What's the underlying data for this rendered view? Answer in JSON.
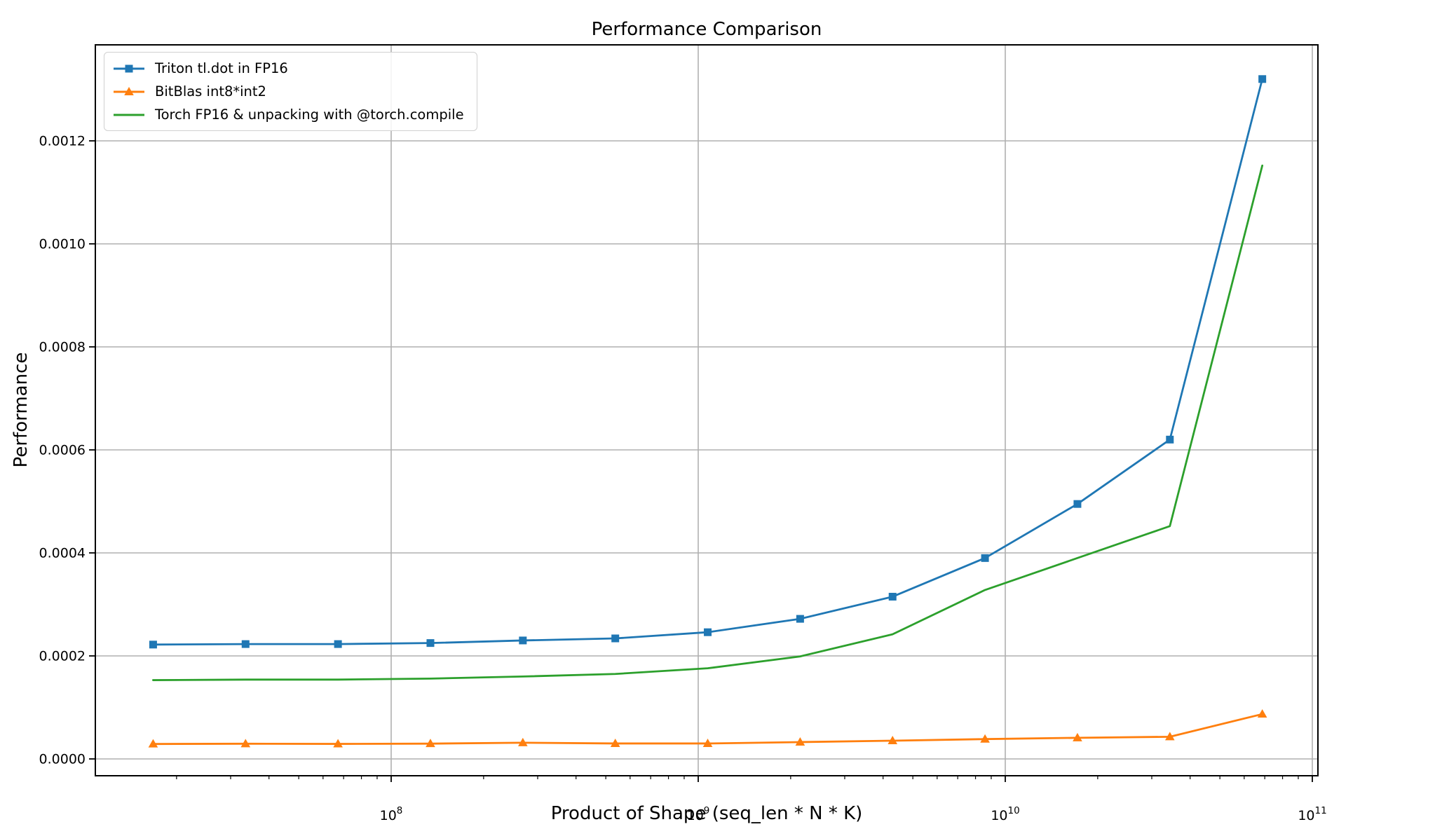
{
  "figure": {
    "title": "Performance Comparison",
    "xlabel": "Product of Shape (seq_len * N * K)",
    "ylabel": "Performance",
    "background": "#ffffff"
  },
  "legend": {
    "position": "upper left",
    "items": [
      {
        "label": "Triton tl.dot in FP16",
        "color": "#1f77b4",
        "marker": "square"
      },
      {
        "label": "BitBlas int8*int2",
        "color": "#ff7f0e",
        "marker": "triangle"
      },
      {
        "label": "Torch FP16 & unpacking with @torch.compile",
        "color": "#2ca02c",
        "marker": "none"
      }
    ]
  },
  "colors": {
    "grid": "#b0b0b0",
    "spine": "#000000",
    "tick_text": "#000000",
    "series_blue": "#1f77b4",
    "series_orange": "#ff7f0e",
    "series_green": "#2ca02c",
    "legend_border": "#d0d0d0"
  },
  "chart_data": {
    "type": "line",
    "title": "Performance Comparison",
    "xlabel": "Product of Shape (seq_len * N * K)",
    "ylabel": "Performance",
    "x_scale": "log",
    "grid": true,
    "legend_position": "upper left",
    "xlim": [
      11000000,
      104000000000
    ],
    "ylim": [
      -3.3e-05,
      0.001384
    ],
    "x": [
      16777216,
      33554432,
      67108864,
      134217728,
      268435456,
      536870912,
      1073741824,
      2147483648,
      4294967296,
      8589934592,
      17179869184,
      34359738368,
      68719476736
    ],
    "x_tick_values": [
      100000000,
      1000000000,
      10000000000,
      100000000000
    ],
    "x_tick_labels": [
      {
        "base": "10",
        "exp": "8"
      },
      {
        "base": "10",
        "exp": "9"
      },
      {
        "base": "10",
        "exp": "10"
      },
      {
        "base": "10",
        "exp": "11"
      }
    ],
    "y_tick_values": [
      0.0,
      0.0002,
      0.0004,
      0.0006,
      0.0008,
      0.001,
      0.0012
    ],
    "y_tick_labels": [
      "0.0000",
      "0.0002",
      "0.0004",
      "0.0006",
      "0.0008",
      "0.0010",
      "0.0012"
    ],
    "series": [
      {
        "name": "Triton tl.dot in FP16",
        "color": "#1f77b4",
        "marker": "square",
        "values": [
          0.000222,
          0.000223,
          0.000223,
          0.000225,
          0.00023,
          0.000234,
          0.000246,
          0.000272,
          0.000315,
          0.00039,
          0.000495,
          0.00062,
          0.00132
        ]
      },
      {
        "name": "BitBlas int8*int2",
        "color": "#ff7f0e",
        "marker": "triangle",
        "values": [
          2.9e-05,
          2.95e-05,
          2.92e-05,
          2.97e-05,
          3.15e-05,
          3e-05,
          3e-05,
          3.27e-05,
          3.54e-05,
          3.85e-05,
          4.1e-05,
          4.3e-05,
          8.7e-05
        ]
      },
      {
        "name": "Torch FP16 & unpacking with @torch.compile",
        "color": "#2ca02c",
        "marker": "none",
        "values": [
          0.000153,
          0.000154,
          0.000154,
          0.000156,
          0.00016,
          0.000165,
          0.000176,
          0.000199,
          0.000242,
          0.000328,
          0.00039,
          0.000452,
          0.001152
        ]
      }
    ]
  }
}
